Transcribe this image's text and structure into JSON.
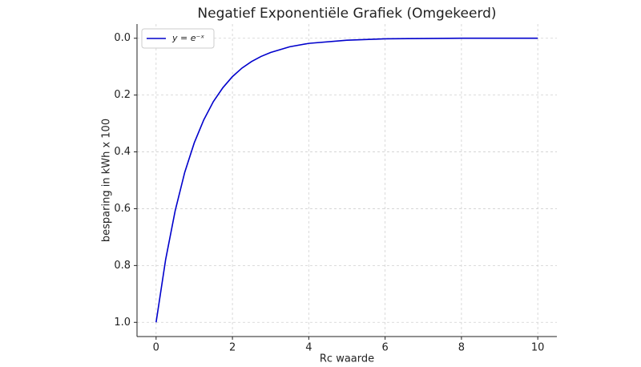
{
  "chart_data": {
    "type": "line",
    "title": "Negatief Exponentiële Grafiek (Omgekeerd)",
    "x_label": "Rc waarde",
    "y_label": "besparing in kWh x 100",
    "x": [
      0,
      0.25,
      0.5,
      0.75,
      1,
      1.25,
      1.5,
      1.75,
      2,
      2.25,
      2.5,
      2.75,
      3,
      3.5,
      4,
      5,
      6,
      7,
      8,
      10
    ],
    "series": [
      {
        "name": "y = e⁻ˣ",
        "color": "#0000cc",
        "values": [
          1,
          0.779,
          0.607,
          0.472,
          0.368,
          0.287,
          0.223,
          0.174,
          0.135,
          0.105,
          0.082,
          0.064,
          0.05,
          0.03,
          0.018,
          0.007,
          0.002,
          0.001,
          0,
          0
        ]
      }
    ],
    "xlim": [
      -0.5,
      10.5
    ],
    "xticks": [
      0,
      2,
      4,
      6,
      8,
      10
    ],
    "ylim": [
      -0.05,
      1.05
    ],
    "y_inverted": true,
    "yticks": [
      {
        "value": 0,
        "label": "0.0"
      },
      0.2,
      0.4,
      0.6,
      0.8,
      {
        "value": 1,
        "label": "1.0"
      }
    ],
    "grid": true,
    "legend": "upper left"
  }
}
